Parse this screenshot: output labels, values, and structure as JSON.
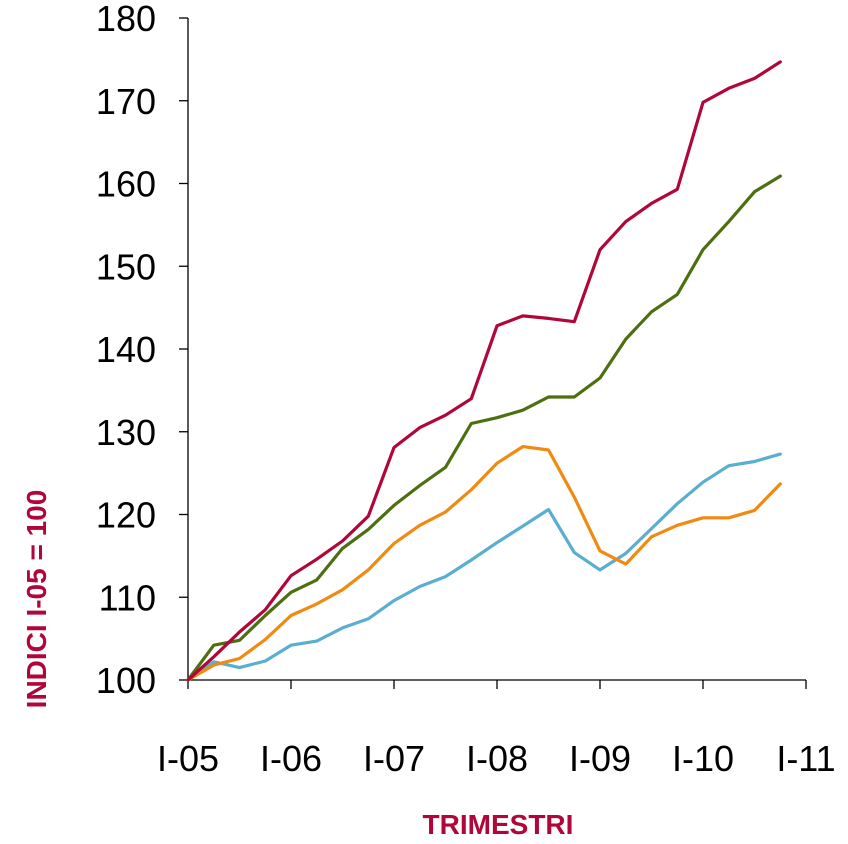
{
  "chart_data": {
    "type": "line",
    "xlabel": "TRIMESTRI",
    "ylabel": "INDICI I-05 = 100",
    "ylim": [
      100,
      180
    ],
    "yticks": [
      100,
      110,
      120,
      130,
      140,
      150,
      160,
      170,
      180
    ],
    "xticks": [
      "I-05",
      "I-06",
      "I-07",
      "I-08",
      "I-09",
      "I-10",
      "I-11"
    ],
    "x": [
      "I-05",
      "II-05",
      "III-05",
      "IV-05",
      "I-06",
      "II-06",
      "III-06",
      "IV-06",
      "I-07",
      "II-07",
      "III-07",
      "IV-07",
      "I-08",
      "II-08",
      "III-08",
      "IV-08",
      "I-09",
      "II-09",
      "III-09",
      "IV-09",
      "I-10",
      "II-10",
      "III-10",
      "IV-10"
    ],
    "grid": false,
    "series": [
      {
        "color": "#b0063a",
        "values": [
          100,
          102.8,
          105.8,
          108.5,
          112.6,
          114.6,
          116.8,
          119.8,
          128.1,
          130.5,
          132.0,
          134.0,
          142.8,
          144.0,
          143.7,
          143.3,
          152.0,
          155.4,
          157.6,
          159.3,
          169.8,
          171.5,
          172.7,
          174.7
        ]
      },
      {
        "color": "#4c7010",
        "values": [
          100,
          104.2,
          104.8,
          107.8,
          110.6,
          112.1,
          115.9,
          118.2,
          121.1,
          123.5,
          125.7,
          131.0,
          131.7,
          132.6,
          134.2,
          134.2,
          136.5,
          141.2,
          144.5,
          146.6,
          152.0,
          155.4,
          159.0,
          160.9
        ]
      },
      {
        "color": "#f08a10",
        "values": [
          100,
          101.8,
          102.6,
          104.9,
          107.8,
          109.2,
          110.9,
          113.3,
          116.5,
          118.7,
          120.3,
          123.0,
          126.2,
          128.2,
          127.8,
          122.1,
          115.6,
          114.0,
          117.3,
          118.7,
          119.6,
          119.6,
          120.5,
          123.7
        ]
      },
      {
        "color": "#5aaed0",
        "values": [
          100,
          102.2,
          101.5,
          102.3,
          104.2,
          104.7,
          106.3,
          107.4,
          109.6,
          111.3,
          112.5,
          114.5,
          116.6,
          118.6,
          120.6,
          115.4,
          113.3,
          115.3,
          118.3,
          121.3,
          123.9,
          125.9,
          126.4,
          127.3
        ]
      }
    ]
  }
}
